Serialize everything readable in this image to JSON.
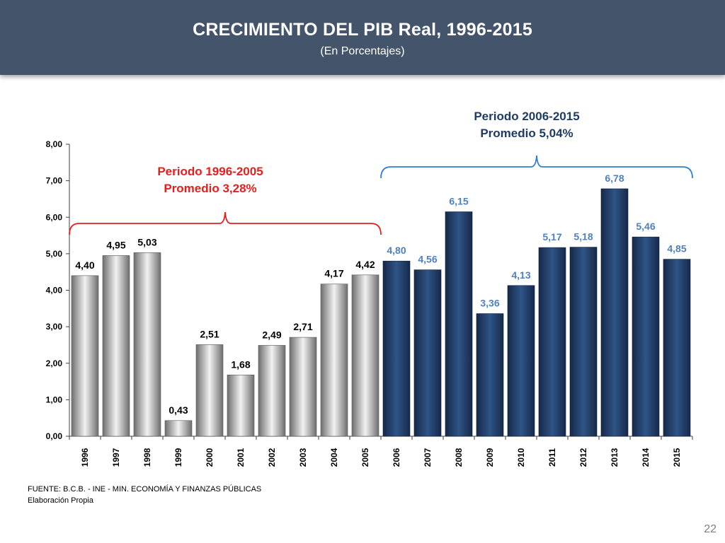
{
  "header": {
    "title": "CRECIMIENTO DEL PIB Real, 1996-2015",
    "subtitle": "(En Porcentajes)"
  },
  "footer": {
    "source": "FUENTE: B.C.B. - INE - MIN. ECONOMÍA Y FINANZAS PÚBLICAS",
    "elaboration": "Elaboración Propia"
  },
  "page_number": "22",
  "colors": {
    "banner": "#44546a",
    "period1": "#e41f1f",
    "period2": "#2f7fce",
    "bar_gray": "#a6a6a6",
    "bar_navy": "#1f3b63",
    "label_navy": "#4f81bd"
  },
  "chart_data": {
    "type": "bar",
    "categories": [
      "1996",
      "1997",
      "1998",
      "1999",
      "2000",
      "2001",
      "2002",
      "2003",
      "2004",
      "2005",
      "2006",
      "2007",
      "2008",
      "2009",
      "2010",
      "2011",
      "2012",
      "2013",
      "2014",
      "2015"
    ],
    "values": [
      4.4,
      4.95,
      5.03,
      0.43,
      2.51,
      1.68,
      2.49,
      2.71,
      4.17,
      4.42,
      4.8,
      4.56,
      6.15,
      3.36,
      4.13,
      5.17,
      5.18,
      6.78,
      5.46,
      4.85
    ],
    "data_labels": [
      "4,40",
      "4,95",
      "5,03",
      "0,43",
      "2,51",
      "1,68",
      "2,49",
      "2,71",
      "4,17",
      "4,42",
      "4,80",
      "4,56",
      "6,15",
      "3,36",
      "4,13",
      "5,17",
      "5,18",
      "6,78",
      "5,46",
      "4,85"
    ],
    "ylim": [
      0,
      8
    ],
    "yticks": [
      "0,00",
      "1,00",
      "2,00",
      "3,00",
      "4,00",
      "5,00",
      "6,00",
      "7,00",
      "8,00"
    ],
    "grid": false,
    "annotations": [
      {
        "line1": "Periodo 1996-2005",
        "line2": "Promedio 3,28%",
        "from": "1996",
        "to": "2005",
        "color": "#e41f1f"
      },
      {
        "line1": "Periodo 2006-2015",
        "line2": "Promedio 5,04%",
        "from": "2006",
        "to": "2015",
        "color": "#2f7fce"
      }
    ]
  }
}
